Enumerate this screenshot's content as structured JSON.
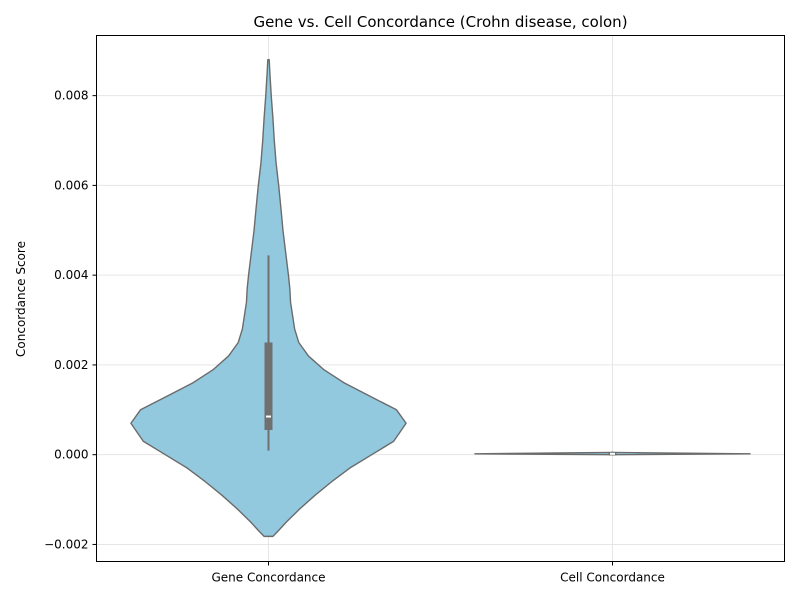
{
  "chart_data": {
    "type": "violin",
    "title": "Gene vs. Cell Concordance (Crohn disease, colon)",
    "xlabel": "",
    "ylabel": "Concordance Score",
    "ylim": [
      -0.00238,
      0.00934
    ],
    "yticks": [
      -0.002,
      0.0,
      0.002,
      0.004,
      0.006,
      0.008
    ],
    "ytick_labels": [
      "−0.002",
      "0.000",
      "0.002",
      "0.004",
      "0.006",
      "0.008"
    ],
    "categories": [
      "Gene Concordance",
      "Cell Concordance"
    ],
    "grid": true,
    "fill_color": "#92c9df",
    "edge_color": "#6b6b6b",
    "box_color": "#707070",
    "violins": [
      {
        "category": "Gene Concordance",
        "density_profile": [
          [
            -0.00182,
            0.032
          ],
          [
            -0.0017,
            0.07
          ],
          [
            -0.0015,
            0.13
          ],
          [
            -0.0012,
            0.23
          ],
          [
            -0.0009,
            0.34
          ],
          [
            -0.0006,
            0.46
          ],
          [
            -0.0003,
            0.59
          ],
          [
            0.0,
            0.75
          ],
          [
            0.0003,
            0.91
          ],
          [
            0.0007,
            1.0
          ],
          [
            0.001,
            0.93
          ],
          [
            0.0013,
            0.74
          ],
          [
            0.0016,
            0.55
          ],
          [
            0.0019,
            0.4
          ],
          [
            0.0022,
            0.29
          ],
          [
            0.0025,
            0.22
          ],
          [
            0.0028,
            0.19
          ],
          [
            0.0031,
            0.175
          ],
          [
            0.0034,
            0.16
          ],
          [
            0.0037,
            0.155
          ],
          [
            0.004,
            0.145
          ],
          [
            0.0045,
            0.125
          ],
          [
            0.005,
            0.105
          ],
          [
            0.0055,
            0.09
          ],
          [
            0.006,
            0.074
          ],
          [
            0.0065,
            0.055
          ],
          [
            0.007,
            0.042
          ],
          [
            0.0075,
            0.032
          ],
          [
            0.008,
            0.02
          ],
          [
            0.0085,
            0.01
          ],
          [
            0.0088,
            0.005
          ]
        ],
        "whisker": [
          9e-05,
          0.00444
        ],
        "q1": 0.00055,
        "median": 0.00085,
        "q3": 0.0025
      },
      {
        "category": "Cell Concordance",
        "density_profile": [
          [
            0.0,
            0.004
          ],
          [
            2e-05,
            1.0
          ],
          [
            5e-05,
            0.004
          ]
        ],
        "whisker": [
          0.0,
          7e-05
        ],
        "q1": 1e-05,
        "median": 2e-05,
        "q3": 5e-05
      }
    ]
  }
}
